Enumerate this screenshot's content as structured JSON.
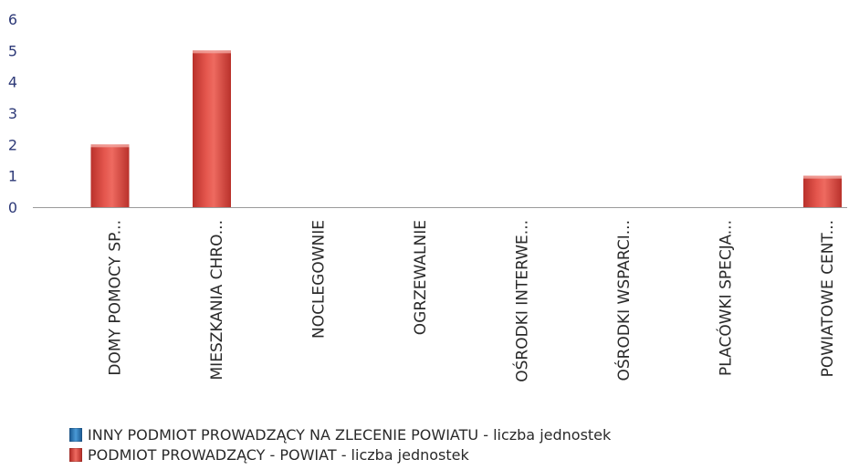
{
  "chart_data": {
    "type": "bar",
    "title": "",
    "xlabel": "",
    "ylabel": "",
    "ylim": [
      0,
      6
    ],
    "yticks": [
      0,
      1,
      2,
      3,
      4,
      5,
      6
    ],
    "grid": false,
    "legend_position": "bottom-left",
    "categories": [
      "DOMY POMOCY SP...",
      "MIESZKANIA CHRO...",
      "NOCLEGOWNIE",
      "OGRZEWALNIE",
      "OŚRODKI INTERWE...",
      "OŚRODKI WSPARCI...",
      "PLACÓWKI SPECJA...",
      "POWIATOWE CENT..."
    ],
    "series": [
      {
        "name": "INNY PODMIOT PROWADZĄCY NA ZLECENIE POWIATU - liczba jednostek",
        "color": "#2f7fc1",
        "values": [
          0,
          0,
          0,
          0,
          0,
          0,
          0,
          0
        ]
      },
      {
        "name": "PODMIOT PROWADZĄCY - POWIAT - liczba jednostek",
        "color": "#d9473f",
        "values": [
          2,
          5,
          0,
          0,
          0,
          0,
          0,
          1
        ]
      }
    ]
  }
}
